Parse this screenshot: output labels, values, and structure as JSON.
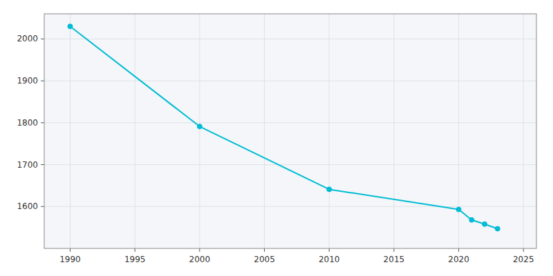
{
  "chart_data": {
    "type": "line",
    "x": [
      1990,
      2000,
      2010,
      2020,
      2021,
      2022,
      2023
    ],
    "values": [
      2030,
      1791,
      1641,
      1593,
      1568,
      1558,
      1547
    ],
    "color": "#00bcd4",
    "marker": "circle",
    "xlim": [
      1988,
      2026
    ],
    "ylim": [
      1500,
      2060
    ],
    "xticks": [
      1990,
      1995,
      2000,
      2005,
      2010,
      2015,
      2020,
      2025
    ],
    "yticks": [
      1600,
      1700,
      1800,
      1900,
      2000
    ],
    "grid": true
  }
}
